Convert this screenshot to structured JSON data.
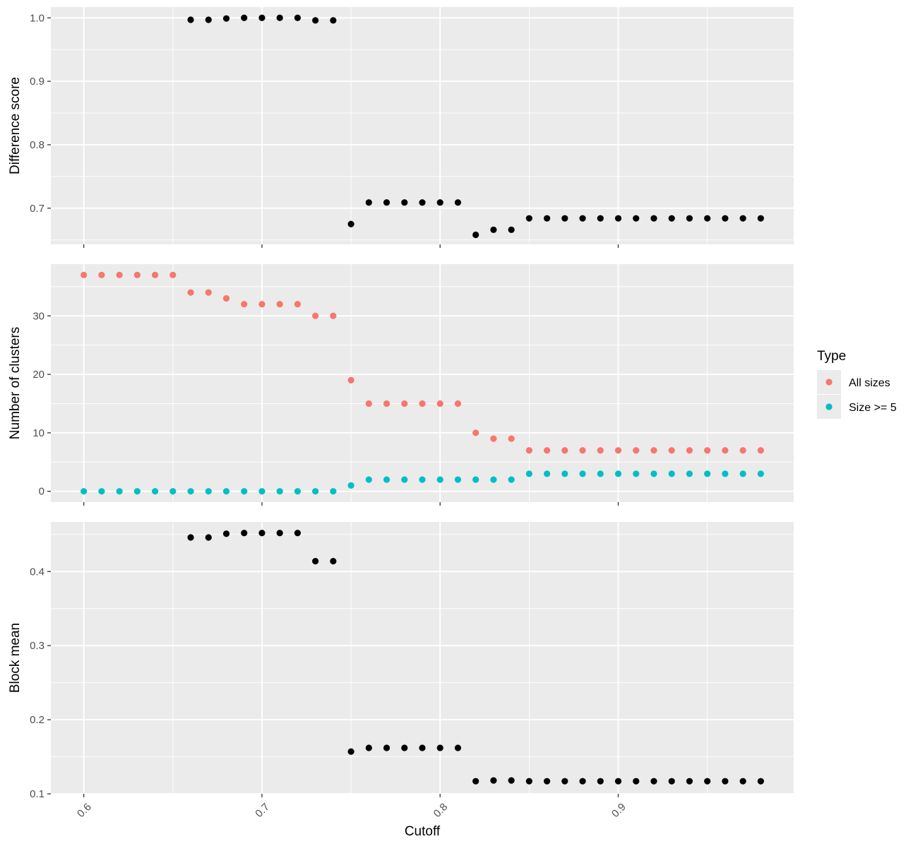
{
  "legend": {
    "title": "Type",
    "items": [
      {
        "label": "All sizes",
        "color": "#F8766D"
      },
      {
        "label": "Size >= 5",
        "color": "#00BFC4"
      }
    ]
  },
  "x_axis": {
    "label": "Cutoff",
    "ticks": [
      0.6,
      0.7,
      0.8,
      0.9
    ],
    "tick_labels": [
      "0.6",
      "0.7",
      "0.8",
      "0.9"
    ],
    "range": [
      0.5815,
      0.9985
    ]
  },
  "style": {
    "panel_background": "#EBEBEB",
    "grid_color": "#FFFFFF",
    "point_color": "#000000"
  },
  "chart_data": [
    {
      "type": "scatter",
      "xlabel": "Cutoff",
      "ylabel": "Difference score",
      "ylim": [
        0.643,
        1.017
      ],
      "yticks": [
        0.7,
        0.8,
        0.9,
        1.0
      ],
      "ytick_labels": [
        "0.7",
        "0.8",
        "0.9",
        "1.0"
      ],
      "ygrid_minor": [
        0.65,
        0.75,
        0.85,
        0.95
      ],
      "series": [
        {
          "color": "#000000",
          "x": [
            0.66,
            0.67,
            0.68,
            0.69,
            0.7,
            0.71,
            0.72,
            0.73,
            0.74,
            0.75,
            0.76,
            0.77,
            0.78,
            0.79,
            0.8,
            0.81,
            0.82,
            0.83,
            0.84,
            0.85,
            0.86,
            0.87,
            0.88,
            0.89,
            0.9,
            0.91,
            0.92,
            0.93,
            0.94,
            0.95,
            0.96,
            0.97,
            0.98
          ],
          "y": [
            0.997,
            0.997,
            0.999,
            1.0,
            1.0,
            1.0,
            1.0,
            0.996,
            0.996,
            0.675,
            0.709,
            0.709,
            0.709,
            0.709,
            0.709,
            0.709,
            0.658,
            0.666,
            0.666,
            0.684,
            0.684,
            0.684,
            0.684,
            0.684,
            0.684,
            0.684,
            0.684,
            0.684,
            0.684,
            0.684,
            0.684,
            0.684,
            0.684
          ]
        }
      ]
    },
    {
      "type": "scatter",
      "xlabel": "Cutoff",
      "ylabel": "Number of clusters",
      "ylim": [
        -1.85,
        38.85
      ],
      "yticks": [
        0,
        10,
        20,
        30
      ],
      "ytick_labels": [
        "0",
        "10",
        "20",
        "30"
      ],
      "ygrid_minor": [
        5,
        15,
        25,
        35
      ],
      "series": [
        {
          "name": "All sizes",
          "color": "#F8766D",
          "x": [
            0.6,
            0.61,
            0.62,
            0.63,
            0.64,
            0.65,
            0.66,
            0.67,
            0.68,
            0.69,
            0.7,
            0.71,
            0.72,
            0.73,
            0.74,
            0.75,
            0.76,
            0.77,
            0.78,
            0.79,
            0.8,
            0.81,
            0.82,
            0.83,
            0.84,
            0.85,
            0.86,
            0.87,
            0.88,
            0.89,
            0.9,
            0.91,
            0.92,
            0.93,
            0.94,
            0.95,
            0.96,
            0.97,
            0.98
          ],
          "y": [
            37,
            37,
            37,
            37,
            37,
            37,
            34,
            34,
            33,
            32,
            32,
            32,
            32,
            30,
            30,
            19,
            15,
            15,
            15,
            15,
            15,
            15,
            10,
            9,
            9,
            7,
            7,
            7,
            7,
            7,
            7,
            7,
            7,
            7,
            7,
            7,
            7,
            7,
            7
          ]
        },
        {
          "name": "Size >= 5",
          "color": "#00BFC4",
          "x": [
            0.6,
            0.61,
            0.62,
            0.63,
            0.64,
            0.65,
            0.66,
            0.67,
            0.68,
            0.69,
            0.7,
            0.71,
            0.72,
            0.73,
            0.74,
            0.75,
            0.76,
            0.77,
            0.78,
            0.79,
            0.8,
            0.81,
            0.82,
            0.83,
            0.84,
            0.85,
            0.86,
            0.87,
            0.88,
            0.89,
            0.9,
            0.91,
            0.92,
            0.93,
            0.94,
            0.95,
            0.96,
            0.97,
            0.98
          ],
          "y": [
            0,
            0,
            0,
            0,
            0,
            0,
            0,
            0,
            0,
            0,
            0,
            0,
            0,
            0,
            0,
            1,
            2,
            2,
            2,
            2,
            2,
            2,
            2,
            2,
            2,
            3,
            3,
            3,
            3,
            3,
            3,
            3,
            3,
            3,
            3,
            3,
            3,
            3,
            3
          ]
        }
      ]
    },
    {
      "type": "scatter",
      "xlabel": "Cutoff",
      "ylabel": "Block mean",
      "ylim": [
        0.1,
        0.467
      ],
      "yticks": [
        0.1,
        0.2,
        0.3,
        0.4
      ],
      "ytick_labels": [
        "0.1",
        "0.2",
        "0.3",
        "0.4"
      ],
      "ygrid_minor": [
        0.15,
        0.25,
        0.35,
        0.45
      ],
      "series": [
        {
          "color": "#000000",
          "x": [
            0.66,
            0.67,
            0.68,
            0.69,
            0.7,
            0.71,
            0.72,
            0.73,
            0.74,
            0.75,
            0.76,
            0.77,
            0.78,
            0.79,
            0.8,
            0.81,
            0.82,
            0.83,
            0.84,
            0.85,
            0.86,
            0.87,
            0.88,
            0.89,
            0.9,
            0.91,
            0.92,
            0.93,
            0.94,
            0.95,
            0.96,
            0.97,
            0.98
          ],
          "y": [
            0.446,
            0.446,
            0.451,
            0.452,
            0.452,
            0.452,
            0.452,
            0.414,
            0.414,
            0.157,
            0.162,
            0.162,
            0.162,
            0.162,
            0.162,
            0.162,
            0.117,
            0.118,
            0.118,
            0.117,
            0.117,
            0.117,
            0.117,
            0.117,
            0.117,
            0.117,
            0.117,
            0.117,
            0.117,
            0.117,
            0.117,
            0.117,
            0.117
          ]
        }
      ]
    }
  ]
}
